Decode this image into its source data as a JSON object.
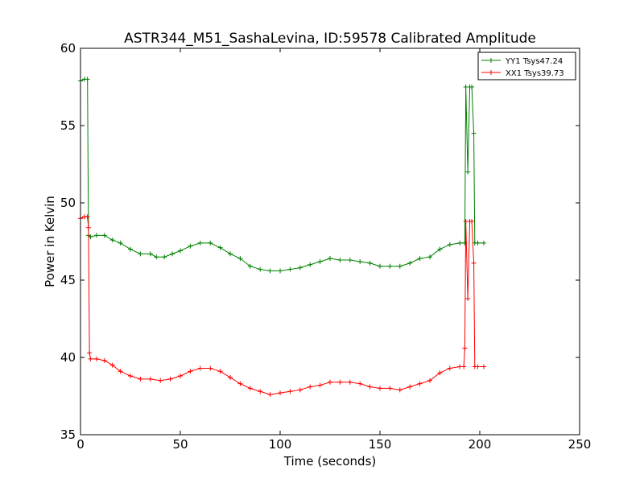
{
  "chart_data": {
    "type": "line",
    "title": "ASTR344_M51_SashaLevina, ID:59578 Calibrated Amplitude",
    "xlabel": "Time (seconds)",
    "ylabel": "Power in Kelvin",
    "xlim": [
      0,
      250
    ],
    "ylim": [
      35,
      60
    ],
    "xticks": [
      "0",
      "50",
      "100",
      "150",
      "200",
      "250"
    ],
    "yticks": [
      "35",
      "40",
      "45",
      "50",
      "55",
      "60"
    ],
    "grid": false,
    "legend_position": "top-right",
    "series": [
      {
        "name": "YY1 Tsys47.24",
        "color": "#008000",
        "marker": "plus",
        "points": [
          [
            0,
            57.9
          ],
          [
            2,
            58.0
          ],
          [
            3.5,
            58.0
          ],
          [
            4,
            47.9
          ],
          [
            5,
            47.8
          ],
          [
            8,
            47.9
          ],
          [
            12,
            47.9
          ],
          [
            16,
            47.6
          ],
          [
            20,
            47.4
          ],
          [
            25,
            47.0
          ],
          [
            30,
            46.7
          ],
          [
            35,
            46.7
          ],
          [
            38,
            46.5
          ],
          [
            42,
            46.5
          ],
          [
            46,
            46.7
          ],
          [
            50,
            46.9
          ],
          [
            55,
            47.2
          ],
          [
            60,
            47.4
          ],
          [
            65,
            47.4
          ],
          [
            70,
            47.1
          ],
          [
            75,
            46.7
          ],
          [
            80,
            46.4
          ],
          [
            85,
            45.9
          ],
          [
            90,
            45.7
          ],
          [
            95,
            45.6
          ],
          [
            100,
            45.6
          ],
          [
            105,
            45.7
          ],
          [
            110,
            45.8
          ],
          [
            115,
            46.0
          ],
          [
            120,
            46.2
          ],
          [
            125,
            46.4
          ],
          [
            130,
            46.3
          ],
          [
            135,
            46.3
          ],
          [
            140,
            46.2
          ],
          [
            145,
            46.1
          ],
          [
            150,
            45.9
          ],
          [
            155,
            45.9
          ],
          [
            160,
            45.9
          ],
          [
            165,
            46.1
          ],
          [
            170,
            46.4
          ],
          [
            175,
            46.5
          ],
          [
            180,
            47.0
          ],
          [
            185,
            47.3
          ],
          [
            190,
            47.4
          ],
          [
            192.5,
            47.4
          ],
          [
            193,
            57.5
          ],
          [
            194,
            52.0
          ],
          [
            195,
            57.5
          ],
          [
            196,
            57.5
          ],
          [
            197,
            54.5
          ],
          [
            197.5,
            47.4
          ],
          [
            199,
            47.4
          ],
          [
            202,
            47.4
          ]
        ]
      },
      {
        "name": "XX1 Tsys39.73",
        "color": "#ff0000",
        "marker": "plus",
        "points": [
          [
            0,
            49.0
          ],
          [
            2,
            49.1
          ],
          [
            3.5,
            49.1
          ],
          [
            4,
            48.4
          ],
          [
            4.5,
            40.3
          ],
          [
            5,
            39.9
          ],
          [
            8,
            39.9
          ],
          [
            12,
            39.8
          ],
          [
            16,
            39.5
          ],
          [
            20,
            39.1
          ],
          [
            25,
            38.8
          ],
          [
            30,
            38.6
          ],
          [
            35,
            38.6
          ],
          [
            40,
            38.5
          ],
          [
            45,
            38.6
          ],
          [
            50,
            38.8
          ],
          [
            55,
            39.1
          ],
          [
            60,
            39.3
          ],
          [
            65,
            39.3
          ],
          [
            70,
            39.1
          ],
          [
            75,
            38.7
          ],
          [
            80,
            38.3
          ],
          [
            85,
            38.0
          ],
          [
            90,
            37.8
          ],
          [
            95,
            37.6
          ],
          [
            100,
            37.7
          ],
          [
            105,
            37.8
          ],
          [
            110,
            37.9
          ],
          [
            115,
            38.1
          ],
          [
            120,
            38.2
          ],
          [
            125,
            38.4
          ],
          [
            130,
            38.4
          ],
          [
            135,
            38.4
          ],
          [
            140,
            38.3
          ],
          [
            145,
            38.1
          ],
          [
            150,
            38.0
          ],
          [
            155,
            38.0
          ],
          [
            160,
            37.9
          ],
          [
            165,
            38.1
          ],
          [
            170,
            38.3
          ],
          [
            175,
            38.5
          ],
          [
            180,
            39.0
          ],
          [
            185,
            39.3
          ],
          [
            190,
            39.4
          ],
          [
            192,
            39.4
          ],
          [
            192.5,
            40.6
          ],
          [
            193,
            48.8
          ],
          [
            194,
            43.8
          ],
          [
            195,
            48.8
          ],
          [
            196,
            48.8
          ],
          [
            197,
            46.1
          ],
          [
            197.5,
            39.4
          ],
          [
            199,
            39.4
          ],
          [
            202,
            39.4
          ]
        ]
      }
    ]
  }
}
